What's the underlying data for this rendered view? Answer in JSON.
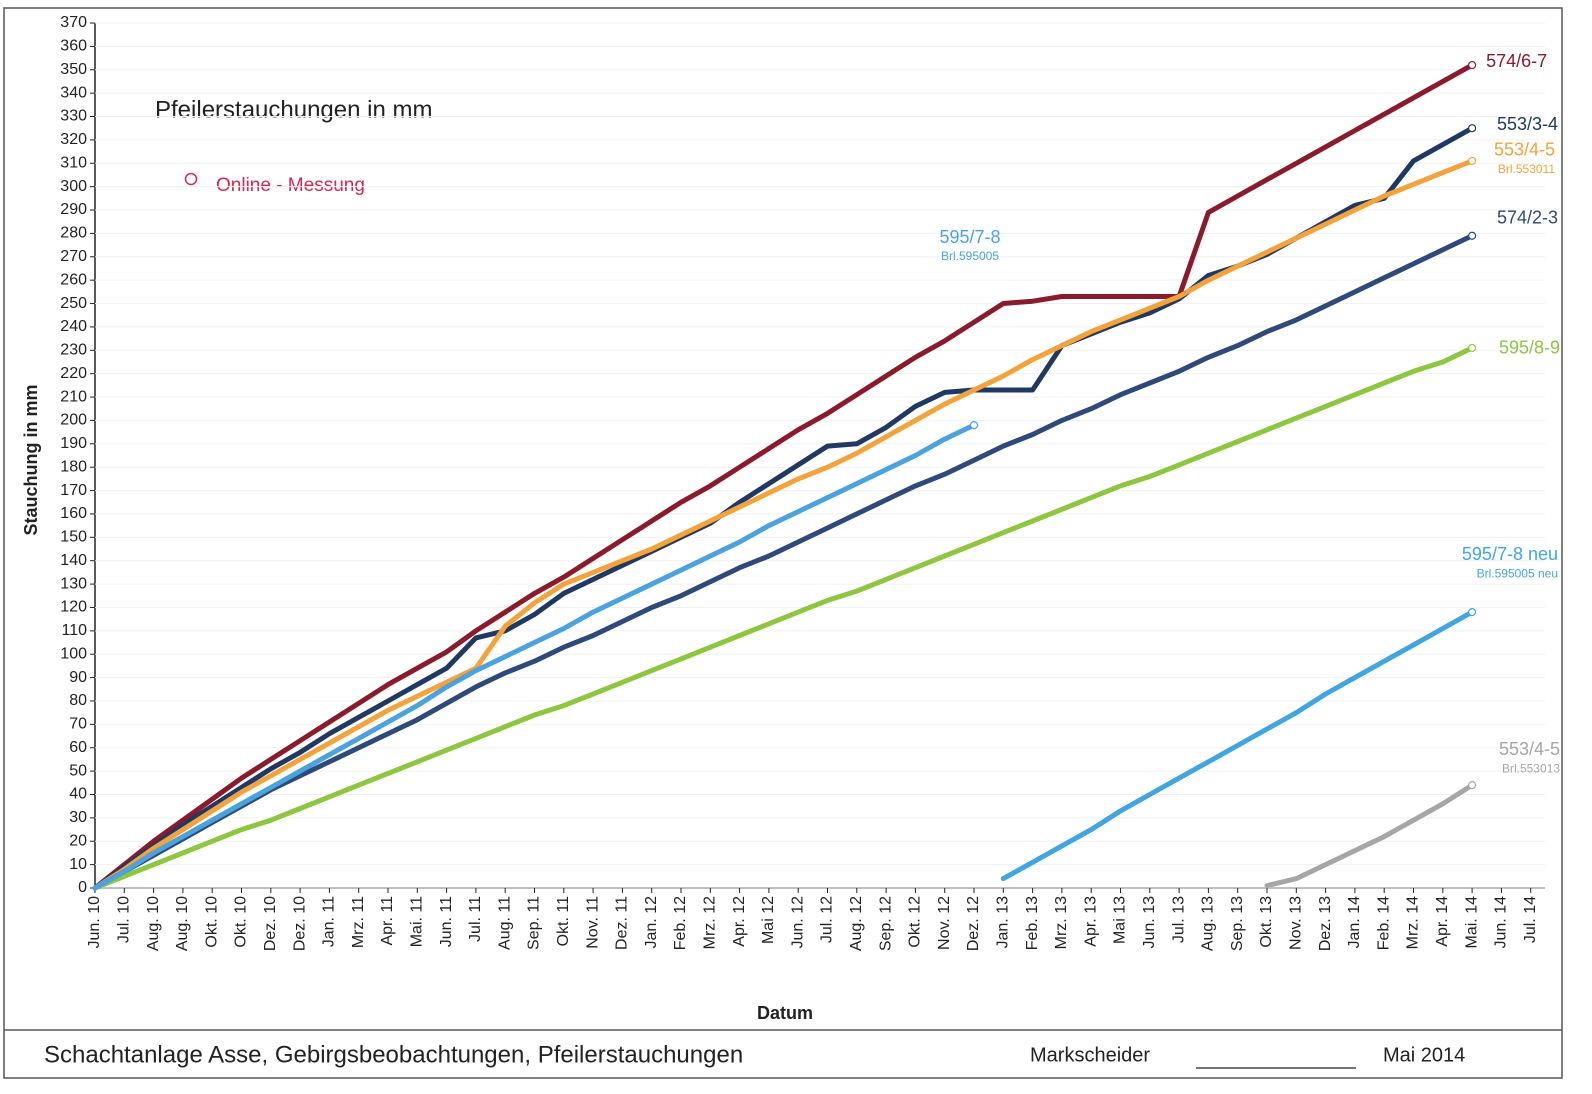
{
  "chart_data": {
    "type": "line",
    "title": "Pfeilerstauchungen in mm",
    "note": "Online - Messung",
    "y_label": "Stauchung in mm",
    "x_label": "Datum",
    "categories": [
      "Jun. 10",
      "Jul. 10",
      "Aug. 10",
      "Aug. 10",
      "Okt. 10",
      "Okt. 10",
      "Dez. 10",
      "Dez. 10",
      "Jan. 11",
      "Mrz. 11",
      "Apr. 11",
      "Mai. 11",
      "Jun. 11",
      "Jul. 11",
      "Aug. 11",
      "Sep. 11",
      "Okt. 11",
      "Nov. 11",
      "Dez. 11",
      "Jan. 12",
      "Feb. 12",
      "Mrz. 12",
      "Apr. 12",
      "Mai 12",
      "Jun. 12",
      "Jul. 12",
      "Aug. 12",
      "Sep. 12",
      "Okt. 12",
      "Nov. 12",
      "Dez. 12",
      "Jan. 13",
      "Feb. 13",
      "Mrz. 13",
      "Apr. 13",
      "Mai 13",
      "Jun. 13",
      "Jul. 13",
      "Aug. 13",
      "Sep. 13",
      "Okt. 13",
      "Nov. 13",
      "Dez. 13",
      "Jan. 14",
      "Feb. 14",
      "Mrz. 14",
      "Apr. 14",
      "Mai. 14",
      "Jun. 14",
      "Jul. 14"
    ],
    "ylim": [
      0,
      370
    ],
    "yticks": [
      0,
      10,
      20,
      30,
      40,
      50,
      60,
      70,
      80,
      90,
      100,
      110,
      120,
      130,
      140,
      150,
      160,
      170,
      180,
      190,
      200,
      210,
      220,
      230,
      240,
      250,
      260,
      270,
      280,
      290,
      300,
      310,
      320,
      330,
      340,
      350,
      360,
      370
    ],
    "series": [
      {
        "name": "574/6-7",
        "color": "#8b1a2b",
        "values": [
          0,
          10,
          20,
          29,
          38,
          47,
          55,
          63,
          71,
          79,
          87,
          94,
          101,
          110,
          118,
          126,
          133,
          141,
          149,
          157,
          165,
          172,
          180,
          188,
          196,
          203,
          211,
          219,
          227,
          234,
          242,
          250,
          251,
          253,
          253,
          253,
          253,
          253,
          289,
          296,
          303,
          310,
          317,
          324,
          331,
          338,
          345,
          352,
          null,
          null
        ]
      },
      {
        "name": "553/3-4",
        "color": "#1f3864",
        "values": [
          0,
          9,
          18,
          27,
          35,
          43,
          51,
          58,
          66,
          73,
          80,
          87,
          94,
          107,
          110,
          117,
          126,
          132,
          138,
          144,
          150,
          156,
          165,
          173,
          181,
          189,
          190,
          197,
          206,
          212,
          213,
          213,
          213,
          232,
          237,
          242,
          246,
          252,
          262,
          266,
          271,
          278,
          285,
          292,
          295,
          311,
          318,
          325,
          null,
          null
        ]
      },
      {
        "name": "553/4-5",
        "sublabel": "Brl.553011",
        "color": "#f4a23a",
        "values": [
          0,
          8,
          17,
          25,
          33,
          41,
          48,
          55,
          62,
          69,
          76,
          82,
          88,
          94,
          112,
          122,
          130,
          135,
          140,
          145,
          151,
          157,
          163,
          169,
          175,
          180,
          186,
          193,
          200,
          207,
          213,
          219,
          226,
          232,
          238,
          243,
          248,
          253,
          260,
          266,
          272,
          278,
          284,
          290,
          296,
          301,
          306,
          311,
          null,
          null
        ]
      },
      {
        "name": "574/2-3",
        "color": "#2e4a7a",
        "values": [
          0,
          7,
          14,
          21,
          28,
          35,
          42,
          48,
          54,
          60,
          66,
          72,
          79,
          86,
          92,
          97,
          103,
          108,
          114,
          120,
          125,
          131,
          137,
          142,
          148,
          154,
          160,
          166,
          172,
          177,
          183,
          189,
          194,
          200,
          205,
          211,
          216,
          221,
          227,
          232,
          238,
          243,
          249,
          255,
          261,
          267,
          273,
          279,
          null,
          null
        ]
      },
      {
        "name": "595/8-9",
        "color": "#8dc63f",
        "values": [
          0,
          5,
          10,
          15,
          20,
          25,
          29,
          34,
          39,
          44,
          49,
          54,
          59,
          64,
          69,
          74,
          78,
          83,
          88,
          93,
          98,
          103,
          108,
          113,
          118,
          123,
          127,
          132,
          137,
          142,
          147,
          152,
          157,
          162,
          167,
          172,
          176,
          181,
          186,
          191,
          196,
          201,
          206,
          211,
          216,
          221,
          225,
          231,
          null,
          null
        ]
      },
      {
        "name": "595/7-8",
        "sublabel": "Brl.595005",
        "color": "#4aa3df",
        "values": [
          0,
          7,
          15,
          22,
          29,
          36,
          43,
          50,
          57,
          64,
          71,
          78,
          86,
          93,
          99,
          105,
          111,
          118,
          124,
          130,
          136,
          142,
          148,
          155,
          161,
          167,
          173,
          179,
          185,
          192,
          198,
          null,
          null,
          null,
          null,
          null,
          null,
          null,
          null,
          null,
          null,
          null,
          null,
          null,
          null,
          null,
          null,
          null,
          null,
          null
        ]
      },
      {
        "name": "595/7-8 neu",
        "sublabel": "Brl.595005 neu",
        "color": "#41a5e1",
        "values": [
          null,
          null,
          null,
          null,
          null,
          null,
          null,
          null,
          null,
          null,
          null,
          null,
          null,
          null,
          null,
          null,
          null,
          null,
          null,
          null,
          null,
          null,
          null,
          null,
          null,
          null,
          null,
          null,
          null,
          null,
          null,
          4,
          11,
          18,
          25,
          33,
          40,
          47,
          54,
          61,
          68,
          75,
          83,
          90,
          97,
          104,
          111,
          118,
          null,
          null
        ]
      },
      {
        "name": "553/4-5",
        "sublabel": "Brl.553013",
        "color": "#a6a6a6",
        "values": [
          null,
          null,
          null,
          null,
          null,
          null,
          null,
          null,
          null,
          null,
          null,
          null,
          null,
          null,
          null,
          null,
          null,
          null,
          null,
          null,
          null,
          null,
          null,
          null,
          null,
          null,
          null,
          null,
          null,
          null,
          null,
          null,
          null,
          null,
          null,
          null,
          null,
          null,
          null,
          null,
          1,
          4,
          10,
          16,
          22,
          29,
          36,
          44,
          null,
          null
        ]
      }
    ],
    "note_color": "#d6264f"
  },
  "footer": {
    "title": "Schachtanlage Asse, Gebirgsbeobachtungen, Pfeilerstauchungen",
    "signature": "Markscheider",
    "date": "Mai 2014"
  }
}
